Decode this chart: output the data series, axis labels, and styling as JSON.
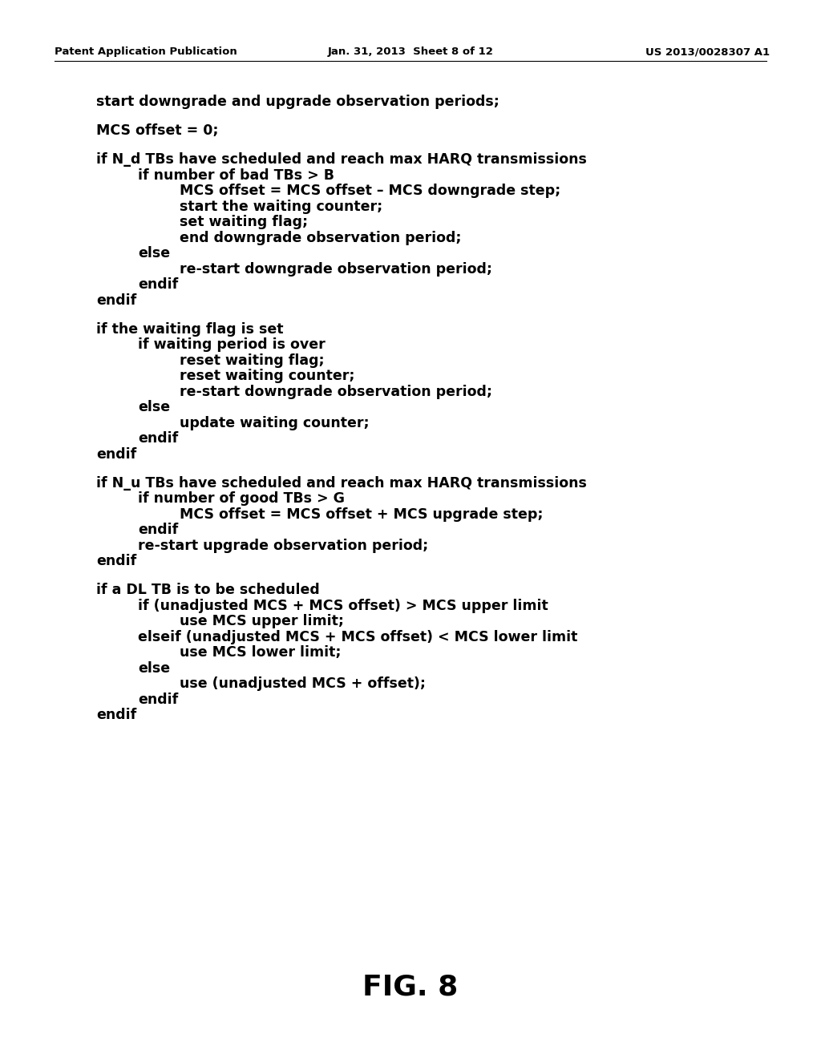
{
  "background_color": "#ffffff",
  "header_left": "Patent Application Publication",
  "header_mid": "Jan. 31, 2013  Sheet 8 of 12",
  "header_right": "US 2013/0028307 A1",
  "header_fontsize": 9.5,
  "text_color": "#000000",
  "code_fontsize": 12.5,
  "figure_label": "FIG. 8",
  "figure_label_fontsize": 26,
  "lines": [
    {
      "text": "start downgrade and upgrade observation periods;",
      "indent": 0
    },
    {
      "text": "",
      "indent": 0
    },
    {
      "text": "MCS offset = 0;",
      "indent": 0
    },
    {
      "text": "",
      "indent": 0
    },
    {
      "text": "if N_d TBs have scheduled and reach max HARQ transmissions",
      "indent": 0
    },
    {
      "text": "if number of bad TBs > B",
      "indent": 1
    },
    {
      "text": "MCS offset = MCS offset – MCS downgrade step;",
      "indent": 2
    },
    {
      "text": "start the waiting counter;",
      "indent": 2
    },
    {
      "text": "set waiting flag;",
      "indent": 2
    },
    {
      "text": "end downgrade observation period;",
      "indent": 2
    },
    {
      "text": "else",
      "indent": 1
    },
    {
      "text": "re-start downgrade observation period;",
      "indent": 2
    },
    {
      "text": "endif",
      "indent": 1
    },
    {
      "text": "endif",
      "indent": 0
    },
    {
      "text": "",
      "indent": 0
    },
    {
      "text": "if the waiting flag is set",
      "indent": 0
    },
    {
      "text": "if waiting period is over",
      "indent": 1
    },
    {
      "text": "reset waiting flag;",
      "indent": 2
    },
    {
      "text": "reset waiting counter;",
      "indent": 2
    },
    {
      "text": "re-start downgrade observation period;",
      "indent": 2
    },
    {
      "text": "else",
      "indent": 1
    },
    {
      "text": "update waiting counter;",
      "indent": 2
    },
    {
      "text": "endif",
      "indent": 1
    },
    {
      "text": "endif",
      "indent": 0
    },
    {
      "text": "",
      "indent": 0
    },
    {
      "text": "if N_u TBs have scheduled and reach max HARQ transmissions",
      "indent": 0
    },
    {
      "text": "if number of good TBs > G",
      "indent": 1
    },
    {
      "text": "MCS offset = MCS offset + MCS upgrade step;",
      "indent": 2
    },
    {
      "text": "endif",
      "indent": 1
    },
    {
      "text": "re-start upgrade observation period;",
      "indent": 1
    },
    {
      "text": "endif",
      "indent": 0
    },
    {
      "text": "",
      "indent": 0
    },
    {
      "text": "if a DL TB is to be scheduled",
      "indent": 0
    },
    {
      "text": "if (unadjusted MCS + MCS offset) > MCS upper limit",
      "indent": 1
    },
    {
      "text": "use MCS upper limit;",
      "indent": 2
    },
    {
      "text": "elseif (unadjusted MCS + MCS offset) < MCS lower limit",
      "indent": 1
    },
    {
      "text": "use MCS lower limit;",
      "indent": 2
    },
    {
      "text": "else",
      "indent": 1
    },
    {
      "text": "use (unadjusted MCS + offset);",
      "indent": 2
    },
    {
      "text": "endif",
      "indent": 1
    },
    {
      "text": "endif",
      "indent": 0
    }
  ]
}
